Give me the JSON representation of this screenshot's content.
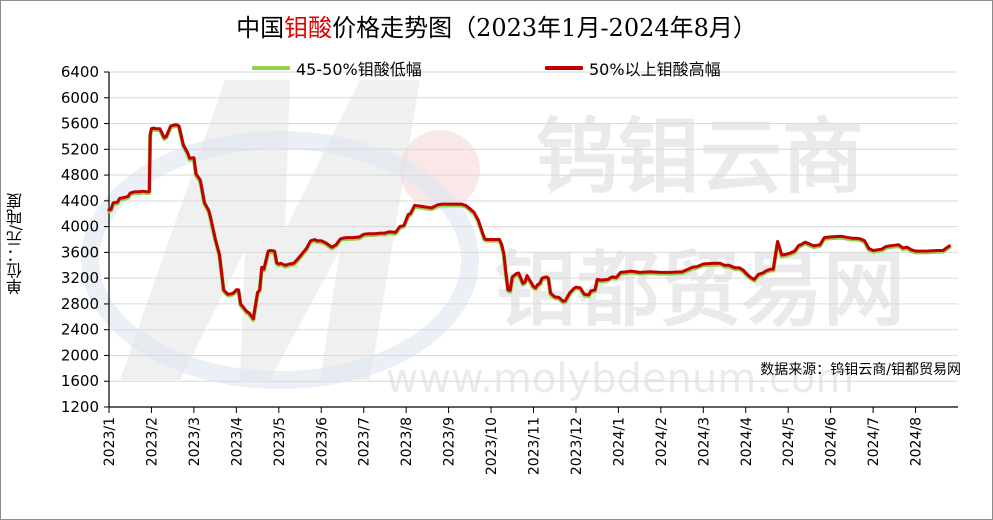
{
  "chart_data": {
    "type": "line",
    "title_parts": [
      {
        "text": "中国",
        "accent": false
      },
      {
        "text": "钼酸",
        "accent": true
      },
      {
        "text": "价格走势图（2023年1月-2024年8月）",
        "accent": false
      }
    ],
    "ylabel": "单位：元/吨度",
    "source": "数据来源：钨钼云商/钼都贸易网",
    "watermark": [
      "钨钼云商",
      "钼都贸易网",
      "www.molybdenum.com"
    ],
    "ylim": [
      1200,
      6400
    ],
    "yticks": [
      1200,
      1600,
      2000,
      2400,
      2800,
      3200,
      3600,
      4000,
      4400,
      4800,
      5200,
      5600,
      6000,
      6400
    ],
    "xlim": [
      0,
      20
    ],
    "xticks": [
      {
        "label": "2023/1",
        "x": 0
      },
      {
        "label": "2023/2",
        "x": 1
      },
      {
        "label": "2023/3",
        "x": 2
      },
      {
        "label": "2023/4",
        "x": 3
      },
      {
        "label": "2023/5",
        "x": 4
      },
      {
        "label": "2023/6",
        "x": 5
      },
      {
        "label": "2023/7",
        "x": 6
      },
      {
        "label": "2023/8",
        "x": 7
      },
      {
        "label": "2023/9",
        "x": 8
      },
      {
        "label": "2023/10",
        "x": 9
      },
      {
        "label": "2023/11",
        "x": 10
      },
      {
        "label": "2023/12",
        "x": 11
      },
      {
        "label": "2024/1",
        "x": 12
      },
      {
        "label": "2024/2",
        "x": 13
      },
      {
        "label": "2024/3",
        "x": 14
      },
      {
        "label": "2024/4",
        "x": 15
      },
      {
        "label": "2024/5",
        "x": 16
      },
      {
        "label": "2024/6",
        "x": 17
      },
      {
        "label": "2024/7",
        "x": 18
      },
      {
        "label": "2024/8",
        "x": 19
      }
    ],
    "grid": true,
    "legend_position": "top",
    "colors": {
      "low": "#92d050",
      "high": "#c00000",
      "accent": "#e00000",
      "watermark": "#d9d9d9"
    },
    "series": [
      {
        "name": "45-50%钼酸低幅",
        "color": "#92d050",
        "x": [
          0,
          0.05,
          0.1,
          0.2,
          0.25,
          0.35,
          0.45,
          0.5,
          0.6,
          0.7,
          0.8,
          0.9,
          0.95,
          0.97,
          1.0,
          1.05,
          1.1,
          1.2,
          1.3,
          1.35,
          1.45,
          1.55,
          1.6,
          1.65,
          1.75,
          1.85,
          1.9,
          2.0,
          2.05,
          2.15,
          2.25,
          2.35,
          2.4,
          2.5,
          2.6,
          2.7,
          2.8,
          2.9,
          2.95,
          3.0,
          3.05,
          3.1,
          3.2,
          3.25,
          3.3,
          3.4,
          3.5,
          3.55,
          3.6,
          3.65,
          3.75,
          3.8,
          3.9,
          3.95,
          4.0,
          4.05,
          4.15,
          4.25,
          4.35,
          4.45,
          4.55,
          4.65,
          4.75,
          4.85,
          4.9,
          5.0,
          5.1,
          5.25,
          5.35,
          5.45,
          5.5,
          5.6,
          5.75,
          5.9,
          6.0,
          6.1,
          6.25,
          6.4,
          6.5,
          6.6,
          6.75,
          6.85,
          6.95,
          7.05,
          7.1,
          7.2,
          7.3,
          7.4,
          7.5,
          7.6,
          7.75,
          7.85,
          8.0,
          8.15,
          8.3,
          8.4,
          8.5,
          8.6,
          8.7,
          8.8,
          8.85,
          8.9,
          9.0,
          9.1,
          9.2,
          9.25,
          9.3,
          9.35,
          9.4,
          9.45,
          9.5,
          9.6,
          9.65,
          9.75,
          9.8,
          9.85,
          9.9,
          10.0,
          10.05,
          10.1,
          10.15,
          10.2,
          10.3,
          10.35,
          10.4,
          10.5,
          10.6,
          10.7,
          10.75,
          10.85,
          10.95,
          11.0,
          11.1,
          11.2,
          11.3,
          11.35,
          11.45,
          11.5,
          11.6,
          11.75,
          11.85,
          11.95,
          12.05,
          12.2,
          12.3,
          12.5,
          12.75,
          13.0,
          13.25,
          13.5,
          13.75,
          13.85,
          14.0,
          14.25,
          14.4,
          14.5,
          14.6,
          14.75,
          14.85,
          14.95,
          15.0,
          15.1,
          15.2,
          15.3,
          15.4,
          15.5,
          15.6,
          15.65,
          15.75,
          15.85,
          15.95,
          16.05,
          16.15,
          16.25,
          16.3,
          16.4,
          16.6,
          16.75,
          16.85,
          17.0,
          17.25,
          17.5,
          17.6,
          17.7,
          17.8,
          17.9,
          18.0,
          18.1,
          18.2,
          18.3,
          18.4,
          18.5,
          18.6,
          18.7,
          18.8,
          18.9,
          19.0,
          19.25,
          19.5,
          19.65,
          19.75,
          19.8
        ],
        "y": [
          4240,
          4250,
          4350,
          4360,
          4420,
          4430,
          4450,
          4500,
          4520,
          4520,
          4530,
          4520,
          4525,
          5400,
          5500,
          5510,
          5500,
          5500,
          5360,
          5380,
          5540,
          5560,
          5560,
          5540,
          5250,
          5130,
          5040,
          5050,
          4800,
          4700,
          4350,
          4230,
          4100,
          3800,
          3550,
          3000,
          2930,
          2940,
          2960,
          3000,
          3000,
          2780,
          2700,
          2660,
          2640,
          2550,
          2960,
          3000,
          3350,
          3320,
          3600,
          3610,
          3600,
          3420,
          3400,
          3410,
          3380,
          3400,
          3410,
          3480,
          3560,
          3640,
          3760,
          3780,
          3760,
          3760,
          3730,
          3660,
          3700,
          3790,
          3800,
          3810,
          3810,
          3820,
          3860,
          3870,
          3870,
          3880,
          3880,
          3900,
          3890,
          3980,
          4000,
          4170,
          4180,
          4310,
          4300,
          4290,
          4280,
          4270,
          4320,
          4330,
          4330,
          4330,
          4330,
          4310,
          4260,
          4200,
          4080,
          3880,
          3790,
          3780,
          3780,
          3780,
          3780,
          3700,
          3560,
          3260,
          3000,
          2990,
          3200,
          3250,
          3260,
          3100,
          3120,
          3220,
          3160,
          3050,
          3030,
          3080,
          3100,
          3180,
          3200,
          3180,
          2950,
          2890,
          2880,
          2820,
          2830,
          2950,
          3020,
          3040,
          3030,
          2930,
          2920,
          2980,
          3000,
          3160,
          3150,
          3160,
          3200,
          3190,
          3270,
          3280,
          3290,
          3270,
          3280,
          3270,
          3270,
          3280,
          3350,
          3360,
          3400,
          3410,
          3410,
          3380,
          3380,
          3340,
          3340,
          3300,
          3260,
          3200,
          3160,
          3240,
          3260,
          3300,
          3320,
          3320,
          3750,
          3540,
          3550,
          3570,
          3600,
          3690,
          3700,
          3740,
          3680,
          3700,
          3810,
          3820,
          3830,
          3800,
          3800,
          3790,
          3760,
          3640,
          3610,
          3620,
          3630,
          3670,
          3680,
          3690,
          3700,
          3650,
          3660,
          3620,
          3600,
          3600,
          3610,
          3610,
          3660,
          3680
        ]
      },
      {
        "name": "50%以上钼酸高幅",
        "color": "#c00000",
        "x": [
          0,
          0.05,
          0.1,
          0.2,
          0.25,
          0.35,
          0.45,
          0.5,
          0.6,
          0.7,
          0.8,
          0.9,
          0.95,
          0.97,
          1.0,
          1.05,
          1.1,
          1.2,
          1.3,
          1.35,
          1.45,
          1.55,
          1.6,
          1.65,
          1.75,
          1.85,
          1.9,
          2.0,
          2.05,
          2.15,
          2.25,
          2.35,
          2.4,
          2.5,
          2.6,
          2.7,
          2.8,
          2.9,
          2.95,
          3.0,
          3.05,
          3.1,
          3.2,
          3.25,
          3.3,
          3.4,
          3.5,
          3.55,
          3.6,
          3.65,
          3.75,
          3.8,
          3.9,
          3.95,
          4.0,
          4.05,
          4.15,
          4.25,
          4.35,
          4.45,
          4.55,
          4.65,
          4.75,
          4.85,
          4.9,
          5.0,
          5.1,
          5.25,
          5.35,
          5.45,
          5.5,
          5.6,
          5.75,
          5.9,
          6.0,
          6.1,
          6.25,
          6.4,
          6.5,
          6.6,
          6.75,
          6.85,
          6.95,
          7.05,
          7.1,
          7.2,
          7.3,
          7.4,
          7.5,
          7.6,
          7.75,
          7.85,
          8.0,
          8.15,
          8.3,
          8.4,
          8.5,
          8.6,
          8.7,
          8.8,
          8.85,
          8.9,
          9.0,
          9.1,
          9.2,
          9.25,
          9.3,
          9.35,
          9.4,
          9.45,
          9.5,
          9.6,
          9.65,
          9.75,
          9.8,
          9.85,
          9.9,
          10.0,
          10.05,
          10.1,
          10.15,
          10.2,
          10.3,
          10.35,
          10.4,
          10.5,
          10.6,
          10.7,
          10.75,
          10.85,
          10.95,
          11.0,
          11.1,
          11.2,
          11.3,
          11.35,
          11.45,
          11.5,
          11.6,
          11.75,
          11.85,
          11.95,
          12.05,
          12.2,
          12.3,
          12.5,
          12.75,
          13.0,
          13.25,
          13.5,
          13.75,
          13.85,
          14.0,
          14.25,
          14.4,
          14.5,
          14.6,
          14.75,
          14.85,
          14.95,
          15.0,
          15.1,
          15.2,
          15.3,
          15.4,
          15.5,
          15.6,
          15.65,
          15.75,
          15.85,
          15.95,
          16.05,
          16.15,
          16.25,
          16.3,
          16.4,
          16.6,
          16.75,
          16.85,
          17.0,
          17.25,
          17.5,
          17.6,
          17.7,
          17.8,
          17.9,
          18.0,
          18.1,
          18.2,
          18.3,
          18.4,
          18.5,
          18.6,
          18.7,
          18.8,
          18.9,
          19.0,
          19.25,
          19.5,
          19.65,
          19.75,
          19.8
        ],
        "y": [
          4260,
          4270,
          4370,
          4380,
          4440,
          4450,
          4470,
          4520,
          4540,
          4540,
          4550,
          4540,
          4545,
          5420,
          5520,
          5530,
          5520,
          5520,
          5380,
          5400,
          5560,
          5580,
          5580,
          5560,
          5270,
          5150,
          5060,
          5070,
          4820,
          4720,
          4370,
          4250,
          4120,
          3820,
          3570,
          3020,
          2950,
          2960,
          2980,
          3020,
          3020,
          2800,
          2720,
          2680,
          2660,
          2570,
          2980,
          3020,
          3370,
          3340,
          3620,
          3630,
          3620,
          3440,
          3420,
          3430,
          3400,
          3420,
          3430,
          3500,
          3580,
          3660,
          3780,
          3800,
          3780,
          3780,
          3750,
          3680,
          3720,
          3810,
          3820,
          3830,
          3830,
          3840,
          3880,
          3890,
          3890,
          3900,
          3900,
          3920,
          3910,
          4000,
          4020,
          4190,
          4200,
          4330,
          4320,
          4310,
          4300,
          4290,
          4340,
          4350,
          4350,
          4350,
          4350,
          4330,
          4280,
          4220,
          4100,
          3900,
          3810,
          3800,
          3800,
          3800,
          3800,
          3720,
          3580,
          3280,
          3020,
          3010,
          3220,
          3270,
          3280,
          3120,
          3140,
          3240,
          3180,
          3070,
          3050,
          3100,
          3120,
          3200,
          3220,
          3200,
          2970,
          2910,
          2900,
          2840,
          2850,
          2970,
          3040,
          3060,
          3050,
          2950,
          2940,
          3000,
          3020,
          3180,
          3170,
          3180,
          3220,
          3210,
          3290,
          3300,
          3310,
          3290,
          3300,
          3290,
          3290,
          3300,
          3370,
          3380,
          3420,
          3430,
          3430,
          3400,
          3400,
          3360,
          3360,
          3320,
          3280,
          3220,
          3180,
          3260,
          3280,
          3320,
          3340,
          3340,
          3770,
          3560,
          3570,
          3590,
          3620,
          3710,
          3720,
          3760,
          3700,
          3720,
          3830,
          3840,
          3850,
          3820,
          3820,
          3810,
          3780,
          3660,
          3630,
          3640,
          3650,
          3690,
          3700,
          3710,
          3720,
          3670,
          3680,
          3640,
          3620,
          3620,
          3630,
          3630,
          3680,
          3700
        ]
      }
    ]
  }
}
